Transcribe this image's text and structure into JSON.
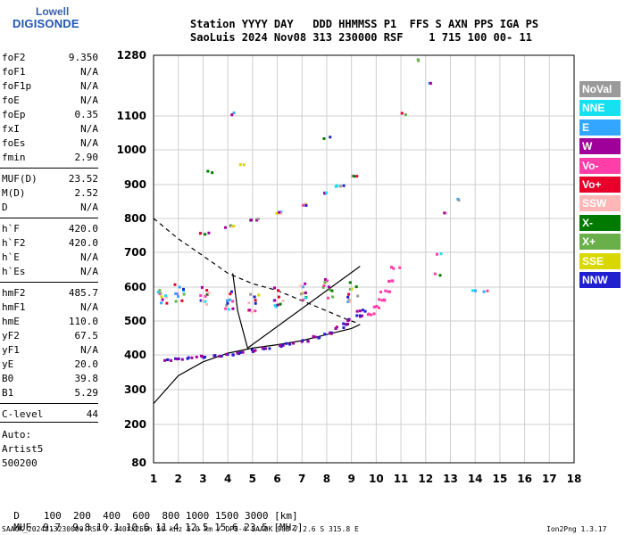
{
  "logo": {
    "line1": "Lowell",
    "line2": "DIGISONDE"
  },
  "header": {
    "line1": "Station YYYY DAY   DDD HHMMSS P1  FFS S AXN PPS IGA PS",
    "line2": "SaoLuis 2024 Nov08 313 230000 RSF    1 715 100 00- 11"
  },
  "params": [
    {
      "label": "foF2",
      "value": "9.350"
    },
    {
      "label": "foF1",
      "value": "N/A"
    },
    {
      "label": "foF1p",
      "value": "N/A"
    },
    {
      "label": "foE",
      "value": "N/A"
    },
    {
      "label": "foEp",
      "value": "0.35"
    },
    {
      "label": "fxI",
      "value": "N/A"
    },
    {
      "label": "foEs",
      "value": "N/A"
    },
    {
      "label": "fmin",
      "value": "2.90"
    },
    {
      "label": "MUF(D)",
      "value": "23.52"
    },
    {
      "label": "M(D)",
      "value": "2.52"
    },
    {
      "label": "D",
      "value": "N/A"
    },
    {
      "label": "h`F",
      "value": "420.0"
    },
    {
      "label": "h`F2",
      "value": "420.0"
    },
    {
      "label": "h`E",
      "value": "N/A"
    },
    {
      "label": "h`Es",
      "value": "N/A"
    },
    {
      "label": "hmF2",
      "value": "485.7"
    },
    {
      "label": "hmF1",
      "value": "N/A"
    },
    {
      "label": "hmE",
      "value": "110.0"
    },
    {
      "label": "yF2",
      "value": "67.5"
    },
    {
      "label": "yF1",
      "value": "N/A"
    },
    {
      "label": "yE",
      "value": "20.0"
    },
    {
      "label": "B0",
      "value": "39.8"
    },
    {
      "label": "B1",
      "value": "5.29"
    },
    {
      "label": "C-level",
      "value": "44"
    }
  ],
  "autoscale": {
    "line1": "Auto:",
    "line2": "Artist5",
    "line3": "500200"
  },
  "legend": [
    {
      "label": "NoVal",
      "color": "#9a9a9a"
    },
    {
      "label": "NNE",
      "color": "#17e0f0"
    },
    {
      "label": "E",
      "color": "#33a6ff"
    },
    {
      "label": "W",
      "color": "#a0009a"
    },
    {
      "label": "Vo-",
      "color": "#ff3ea8"
    },
    {
      "label": "Vo+",
      "color": "#e8002a"
    },
    {
      "label": "SSW",
      "color": "#ffb6b6"
    },
    {
      "label": "X-",
      "color": "#007a00"
    },
    {
      "label": "X+",
      "color": "#6ab04a"
    },
    {
      "label": "SSE",
      "color": "#d8d800"
    },
    {
      "label": "NNW",
      "color": "#2020d0"
    }
  ],
  "chart_data": {
    "type": "scatter",
    "title": "",
    "xlabel": "",
    "ylabel": "",
    "xlim": [
      1,
      18
    ],
    "ylim": [
      80,
      1280
    ],
    "x_ticks": [
      1,
      2,
      3,
      4,
      5,
      6,
      7,
      8,
      9,
      10,
      11,
      12,
      13,
      14,
      15,
      16,
      17,
      18
    ],
    "y_ticks": [
      80,
      200,
      300,
      400,
      500,
      600,
      700,
      800,
      900,
      1000,
      1100,
      1280
    ],
    "grid": true,
    "legend_placement": "right",
    "series": [
      {
        "trace": "o-trace F2",
        "x": [
          1.5,
          2,
          2.5,
          3,
          3.5,
          4,
          4.5,
          5,
          5.5,
          6,
          6.5,
          7,
          7.5,
          8,
          8.5,
          8.8,
          9,
          9.2,
          9.35
        ],
        "y": [
          390,
          392,
          395,
          398,
          402,
          406,
          410,
          416,
          423,
          430,
          437,
          446,
          456,
          468,
          484,
          496,
          507,
          520,
          535
        ]
      },
      {
        "trace": "x-trace F2",
        "x": [
          9.7,
          9.9,
          10.1,
          10.3,
          10.5,
          10.7
        ],
        "y": [
          525,
          545,
          565,
          590,
          620,
          660
        ]
      },
      {
        "trace": "upper diffuse band",
        "x": [
          1.3,
          2,
          3,
          4,
          5,
          6,
          7,
          8,
          9
        ],
        "y": [
          585,
          590,
          575,
          565,
          560,
          575,
          590,
          600,
          590
        ]
      },
      {
        "trace": "multiple echo",
        "x": [
          3,
          4,
          5,
          6,
          7,
          8,
          8.5,
          9
        ],
        "y": [
          760,
          780,
          800,
          820,
          845,
          880,
          900,
          930
        ]
      },
      {
        "trace": "scattered echoes",
        "x": [
          3.2,
          4.5,
          8,
          4,
          8.2,
          11,
          11.8,
          12.3,
          12.6,
          14,
          14.5,
          13.1,
          12.5,
          12.4
        ],
        "y": [
          940,
          960,
          1040,
          1110,
          900,
          1110,
          1270,
          1200,
          820,
          595,
          590,
          860,
          640,
          700
        ]
      }
    ],
    "curves": [
      {
        "trace": "dashed MUF curve",
        "x": [
          1,
          2,
          3,
          4,
          5,
          6,
          7,
          8,
          8.8,
          9.2
        ],
        "y": [
          800,
          740,
          690,
          640,
          610,
          590,
          560,
          530,
          505,
          495
        ]
      },
      {
        "trace": "solid profile curve",
        "x": [
          1,
          2,
          3,
          4,
          5,
          6,
          7,
          8,
          9,
          9.35
        ],
        "y": [
          260,
          340,
          380,
          405,
          420,
          430,
          442,
          460,
          478,
          490
        ]
      }
    ],
    "mirror_axis": {
      "x": [
        4.2,
        4.4,
        4.8,
        9.35
      ],
      "y": [
        640,
        530,
        420,
        660
      ]
    }
  },
  "distance_row": {
    "label": "D",
    "values": "100  200  400  600  800 1000 1500 3000 [km]"
  },
  "muf_row": {
    "label": "MUF",
    "values": "9.7  9.8 10.1 10.6 11.4 12.5 15.6 23.5 [MHz]"
  },
  "footer_file": "SAA0K_2024313230000.RSF / 340fx256h 50 kHz 5.0 km / DPS-4 SAA0K 903 / 2.6 S 315.8 E",
  "footer_version": "Ion2Png 1.3.17"
}
